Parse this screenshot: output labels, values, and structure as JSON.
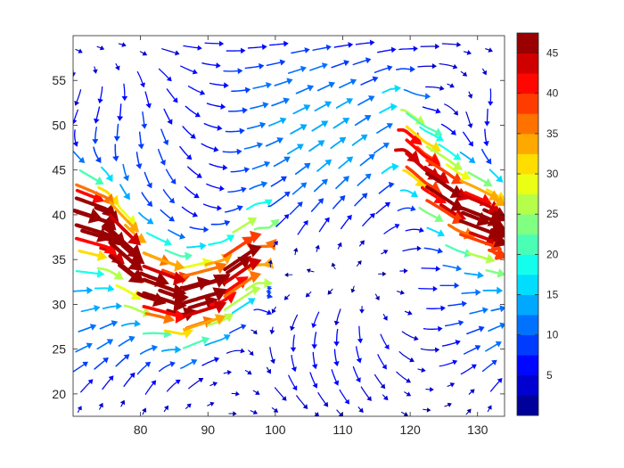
{
  "chart_data": {
    "type": "streamline-quiver",
    "title": "",
    "xlabel": "",
    "ylabel": "",
    "xlim": [
      70,
      134
    ],
    "ylim": [
      17.5,
      60
    ],
    "xticks": [
      "80",
      "90",
      "100",
      "110",
      "120",
      "130"
    ],
    "yticks": [
      "20",
      "25",
      "30",
      "35",
      "40",
      "45",
      "50",
      "55"
    ],
    "colorbar": {
      "range": [
        0,
        47.5
      ],
      "ticks": [
        "5",
        "10",
        "15",
        "20",
        "25",
        "30",
        "35",
        "40",
        "45"
      ],
      "colormap": "jet",
      "levels": 19
    },
    "field": {
      "description_values": "speed magnitude coloured by jet colormap",
      "jets": [
        {
          "x": [
            70,
            75,
            80,
            86,
            92,
            97
          ],
          "y": [
            40.5,
            39,
            33,
            30,
            32,
            36
          ],
          "peak": 45
        },
        {
          "x": [
            119,
            122,
            127,
            132,
            134
          ],
          "y": [
            49,
            45,
            41,
            39,
            38
          ],
          "peak": 42
        }
      ]
    },
    "colors": {
      "axis": "#262626",
      "background": "#ffffff"
    }
  }
}
